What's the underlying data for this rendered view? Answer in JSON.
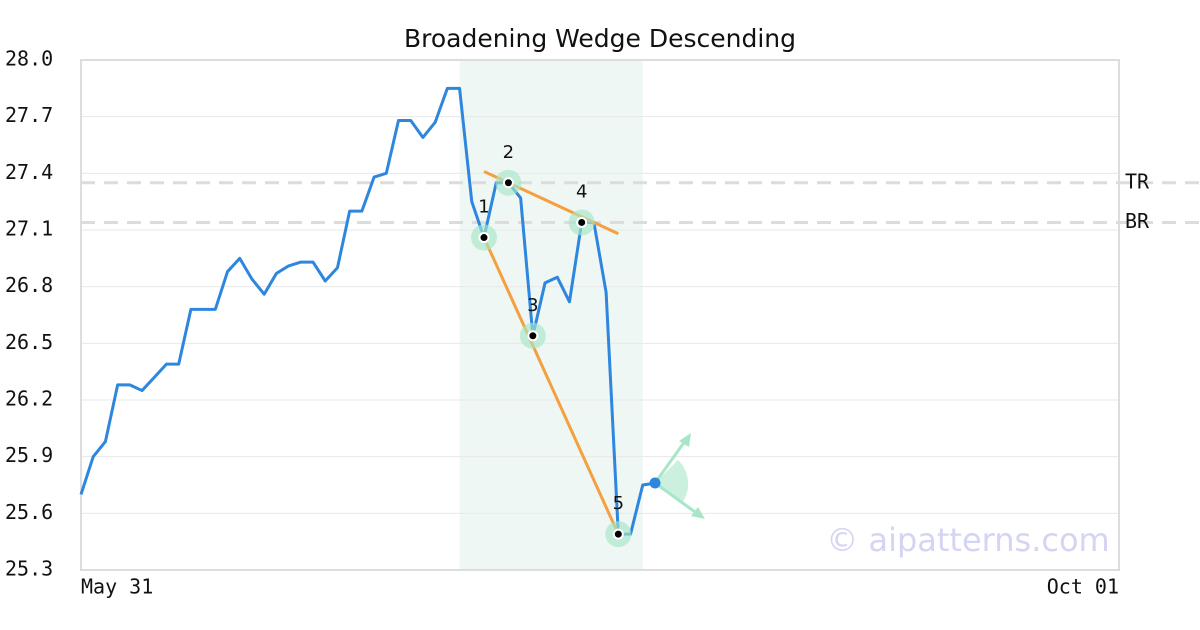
{
  "chart_data": {
    "type": "line",
    "title": "Broadening Wedge Descending",
    "categories": [
      "May 31",
      null,
      null,
      null,
      null,
      null,
      null,
      null,
      null,
      null,
      null,
      null,
      null,
      null,
      null,
      null,
      null,
      null,
      null,
      null,
      null,
      null,
      null,
      null,
      null,
      null,
      null,
      null,
      null,
      null,
      null,
      null,
      null,
      null,
      null,
      null,
      null,
      null,
      null,
      null,
      null,
      null,
      null,
      null,
      null,
      null,
      null,
      null,
      null,
      null,
      null,
      null,
      null,
      null,
      null,
      null,
      null,
      null,
      null,
      null,
      null,
      null,
      null,
      null,
      null,
      null,
      null,
      null,
      null,
      null,
      null,
      null,
      null,
      null,
      null,
      null,
      null,
      null,
      null,
      null,
      null,
      null,
      null,
      null,
      null,
      "Oct 01"
    ],
    "series": [
      {
        "color": "#2e86de",
        "values": [
          25.7,
          25.9,
          25.98,
          26.28,
          26.28,
          26.25,
          26.32,
          26.39,
          26.39,
          26.68,
          26.68,
          26.68,
          26.88,
          26.95,
          26.84,
          26.76,
          26.87,
          26.91,
          26.93,
          26.93,
          26.83,
          26.9,
          27.2,
          27.2,
          27.38,
          27.4,
          27.68,
          27.68,
          27.59,
          27.67,
          27.85,
          27.85,
          27.25,
          27.06,
          27.35,
          27.35,
          27.27,
          26.54,
          26.82,
          26.85,
          26.72,
          27.14,
          27.14,
          26.77,
          25.49,
          25.49,
          25.75,
          25.76,
          null,
          null,
          null,
          null,
          null,
          null,
          null,
          null,
          null,
          null,
          null,
          null,
          null,
          null,
          null,
          null,
          null,
          null,
          null,
          null,
          null,
          null,
          null,
          null,
          null,
          null,
          null,
          null,
          null,
          null,
          null,
          null,
          null,
          null,
          null,
          null,
          null,
          null
        ]
      }
    ],
    "pattern_points": {
      "labels": [
        "1",
        "2",
        "3",
        "4",
        "5"
      ],
      "x": [
        33,
        35,
        37,
        41,
        44
      ],
      "values": [
        27.06,
        27.35,
        26.54,
        27.14,
        25.49
      ]
    },
    "trend_lines": [
      {
        "color": "#f4a040",
        "x": [
          33,
          44
        ],
        "values": [
          27.41,
          27.08
        ]
      },
      {
        "color": "#f4a040",
        "x": [
          33,
          44
        ],
        "values": [
          27.06,
          25.49
        ]
      }
    ],
    "highlight": [
      31,
      46
    ],
    "levels": [
      {
        "label": "TR",
        "value": 27.35
      },
      {
        "label": "BR",
        "value": 27.14
      }
    ],
    "watermark": "© aipatterns.com",
    "ylim": [
      25.3,
      28.0
    ],
    "yticks": [
      25.3,
      25.6,
      25.9,
      26.2,
      26.5,
      26.8,
      27.1,
      27.4,
      27.7,
      {
        "value": 28.0,
        "label": "28.0"
      }
    ],
    "grid": true
  }
}
